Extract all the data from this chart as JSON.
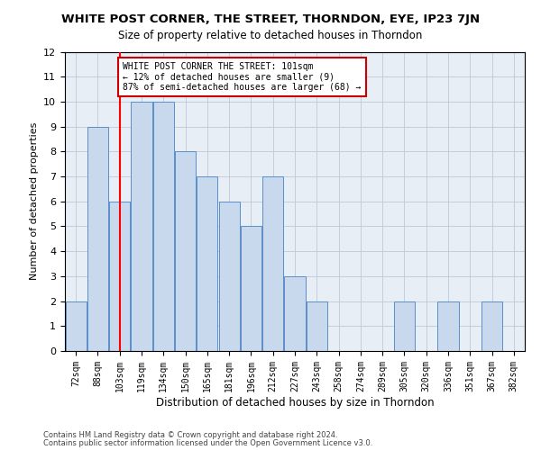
{
  "title": "WHITE POST CORNER, THE STREET, THORNDON, EYE, IP23 7JN",
  "subtitle": "Size of property relative to detached houses in Thorndon",
  "xlabel": "Distribution of detached houses by size in Thorndon",
  "ylabel": "Number of detached properties",
  "footnote1": "Contains HM Land Registry data © Crown copyright and database right 2024.",
  "footnote2": "Contains public sector information licensed under the Open Government Licence v3.0.",
  "categories": [
    "72sqm",
    "88sqm",
    "103sqm",
    "119sqm",
    "134sqm",
    "150sqm",
    "165sqm",
    "181sqm",
    "196sqm",
    "212sqm",
    "227sqm",
    "243sqm",
    "258sqm",
    "274sqm",
    "289sqm",
    "305sqm",
    "320sqm",
    "336sqm",
    "351sqm",
    "367sqm",
    "382sqm"
  ],
  "values": [
    2,
    9,
    6,
    10,
    10,
    8,
    7,
    6,
    5,
    7,
    3,
    2,
    0,
    0,
    0,
    2,
    0,
    2,
    0,
    2,
    0
  ],
  "bar_color": "#c9d9ed",
  "bar_edge_color": "#5b8fc9",
  "red_line_index": 2,
  "ylim": [
    0,
    12
  ],
  "yticks": [
    0,
    1,
    2,
    3,
    4,
    5,
    6,
    7,
    8,
    9,
    10,
    11,
    12
  ],
  "annotation_text": "WHITE POST CORNER THE STREET: 101sqm\n← 12% of detached houses are smaller (9)\n87% of semi-detached houses are larger (68) →",
  "annotation_box_color": "#ffffff",
  "annotation_box_edge_color": "#cc0000",
  "background_color": "#ffffff",
  "ax_background_color": "#e8eef6",
  "grid_color": "#c0c8d8"
}
